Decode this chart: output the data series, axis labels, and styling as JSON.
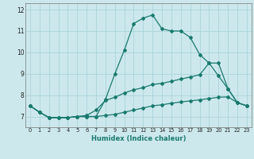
{
  "xlabel": "Humidex (Indice chaleur)",
  "bg_color": "#cce8ed",
  "grid_color": "#aad4db",
  "line_color": "#1a7a6e",
  "xlim": [
    -0.5,
    23.5
  ],
  "ylim": [
    6.5,
    12.3
  ],
  "xticks": [
    0,
    1,
    2,
    3,
    4,
    5,
    6,
    7,
    8,
    9,
    10,
    11,
    12,
    13,
    14,
    15,
    16,
    17,
    18,
    19,
    20,
    21,
    22,
    23
  ],
  "yticks": [
    7,
    8,
    9,
    10,
    11,
    12
  ],
  "series1_x": [
    0,
    1,
    2,
    3,
    4,
    5,
    6,
    7,
    8,
    9,
    10,
    11,
    12,
    13,
    14,
    15,
    16,
    17,
    18,
    19,
    20,
    21,
    22,
    23
  ],
  "series1_y": [
    7.5,
    7.2,
    6.95,
    6.95,
    6.95,
    7.0,
    7.0,
    7.0,
    7.8,
    9.0,
    10.1,
    11.35,
    11.6,
    11.75,
    11.1,
    11.0,
    11.0,
    10.7,
    9.9,
    9.5,
    8.9,
    8.3,
    7.65,
    7.5
  ],
  "series2_x": [
    0,
    1,
    2,
    3,
    4,
    5,
    6,
    7,
    8,
    9,
    10,
    11,
    12,
    13,
    14,
    15,
    16,
    17,
    18,
    19,
    20,
    21,
    22,
    23
  ],
  "series2_y": [
    7.5,
    7.2,
    6.95,
    6.95,
    6.95,
    7.0,
    7.05,
    7.3,
    7.75,
    7.9,
    8.1,
    8.25,
    8.35,
    8.5,
    8.55,
    8.65,
    8.75,
    8.85,
    8.95,
    9.5,
    9.5,
    8.3,
    7.65,
    7.5
  ],
  "series3_x": [
    0,
    1,
    2,
    3,
    4,
    5,
    6,
    7,
    8,
    9,
    10,
    11,
    12,
    13,
    14,
    15,
    16,
    17,
    18,
    19,
    20,
    21,
    22,
    23
  ],
  "series3_y": [
    7.5,
    7.2,
    6.95,
    6.95,
    6.95,
    7.0,
    7.0,
    7.0,
    7.05,
    7.1,
    7.2,
    7.3,
    7.4,
    7.5,
    7.55,
    7.62,
    7.68,
    7.73,
    7.78,
    7.84,
    7.9,
    7.92,
    7.65,
    7.5
  ]
}
